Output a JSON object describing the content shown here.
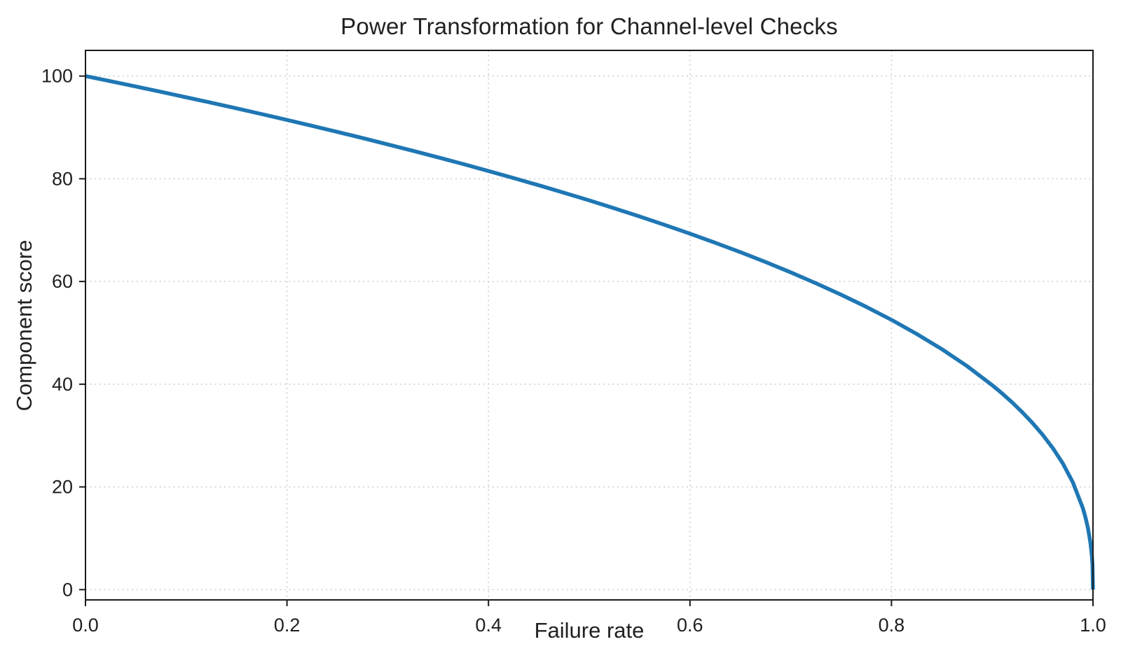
{
  "chart_data": {
    "type": "line",
    "title": "Power Transformation for Channel-level Checks",
    "xlabel": "Failure rate",
    "ylabel": "Component score",
    "xlim": [
      0.0,
      1.0
    ],
    "ylim": [
      -2,
      105
    ],
    "x_ticks": [
      0.0,
      0.2,
      0.4,
      0.6,
      0.8,
      1.0
    ],
    "x_tick_labels": [
      "0.0",
      "0.2",
      "0.4",
      "0.6",
      "0.8",
      "1.0"
    ],
    "y_ticks": [
      0,
      20,
      40,
      60,
      80,
      100
    ],
    "y_tick_labels": [
      "0",
      "20",
      "40",
      "60",
      "80",
      "100"
    ],
    "grid": true,
    "grid_style": "dotted",
    "legend": false,
    "line_color": "#1f77b4",
    "grid_color": "#cccccc",
    "axis_color": "#1a1a1a",
    "text_color": "#1f1f1f",
    "background": "#ffffff",
    "series": [
      {
        "x": [
          0,
          0.025,
          0.05,
          0.075,
          0.1,
          0.125,
          0.15,
          0.175,
          0.2,
          0.225,
          0.25,
          0.275,
          0.3,
          0.325,
          0.35,
          0.375,
          0.4,
          0.425,
          0.45,
          0.475,
          0.5,
          0.525,
          0.55,
          0.575,
          0.6,
          0.625,
          0.65,
          0.675,
          0.7,
          0.725,
          0.75,
          0.775,
          0.8,
          0.825,
          0.85,
          0.875,
          0.9,
          0.91,
          0.92,
          0.93,
          0.94,
          0.95,
          0.96,
          0.97,
          0.98,
          0.99,
          0.9925,
          0.995,
          0.9975,
          0.999,
          0.9995,
          1.0
        ],
        "y": [
          100,
          98.99,
          97.97,
          96.93,
          95.87,
          94.8,
          93.71,
          92.59,
          91.46,
          90.31,
          89.13,
          87.93,
          86.7,
          85.45,
          84.17,
          82.86,
          81.52,
          80.14,
          78.73,
          77.28,
          75.79,
          74.25,
          72.66,
          71.02,
          69.31,
          67.55,
          65.71,
          63.79,
          61.78,
          59.67,
          57.43,
          55.06,
          52.53,
          49.8,
          46.82,
          43.53,
          39.81,
          38.17,
          36.41,
          34.52,
          32.45,
          30.17,
          27.59,
          24.6,
          20.91,
          15.85,
          14.13,
          12.01,
          9.11,
          6.31,
          4.78,
          0
        ]
      }
    ]
  }
}
